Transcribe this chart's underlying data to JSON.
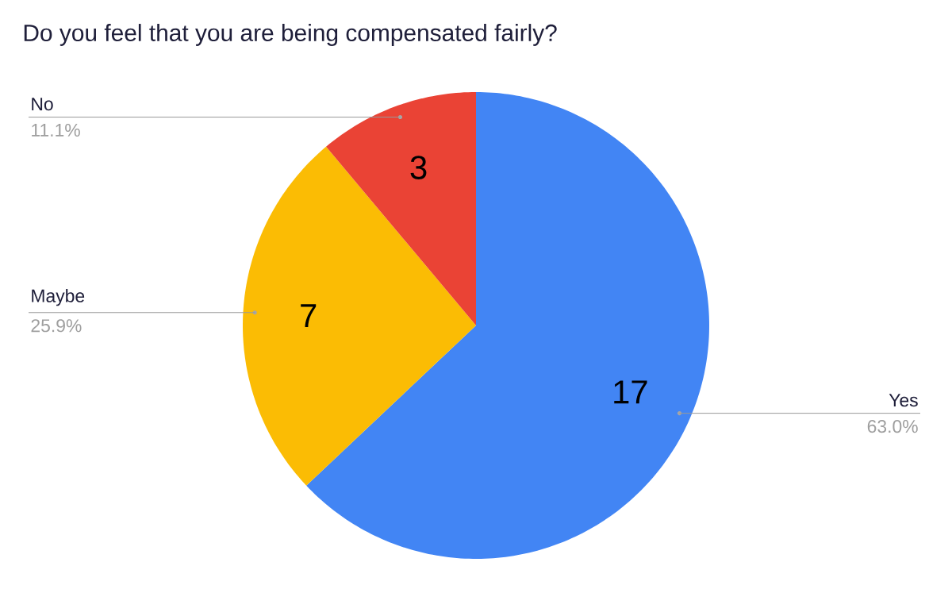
{
  "chart_data": {
    "type": "pie",
    "title": "Do you feel that you are being compensated fairly?",
    "categories": [
      "Yes",
      "Maybe",
      "No"
    ],
    "values": [
      17,
      7,
      3
    ],
    "colors": [
      "#4285f4",
      "#fbbc04",
      "#ea4335"
    ],
    "value_labels": [
      "17",
      "7",
      "3"
    ],
    "annotations": [
      "63.0%",
      "25.9%",
      "11.1%"
    ]
  }
}
